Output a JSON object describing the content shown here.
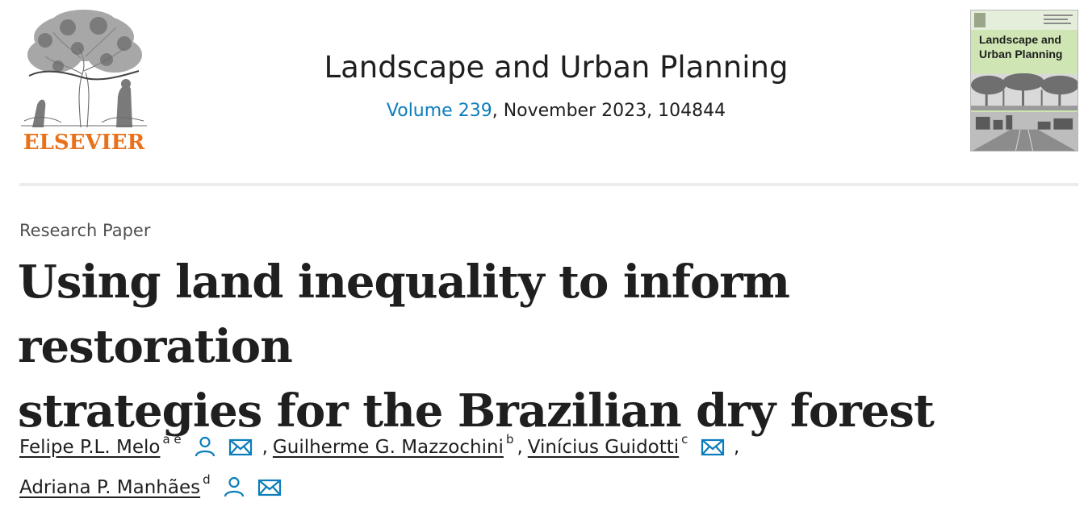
{
  "publisher": {
    "name": "ELSEVIER"
  },
  "journal": {
    "title": "Landscape and Urban Planning",
    "volume_link": "Volume 239",
    "issue_rest": ", November 2023, 104844",
    "cover_title_line1": "Landscape and",
    "cover_title_line2": "Urban Planning"
  },
  "article": {
    "type": "Research Paper",
    "title_line1": "Using land inequality to inform restoration",
    "title_line2": "strategies for the Brazilian dry forest"
  },
  "authors": [
    {
      "name": "Felipe P.L. Melo",
      "affiliations": "a e",
      "has_profile": true,
      "has_email": true
    },
    {
      "name": "Guilherme G. Mazzochini",
      "affiliations": "b",
      "has_profile": false,
      "has_email": false
    },
    {
      "name": "Vinícius Guidotti",
      "affiliations": "c",
      "has_profile": false,
      "has_email": true
    },
    {
      "name": "Adriana P. Manhães",
      "affiliations": "d",
      "has_profile": true,
      "has_email": true
    }
  ],
  "separators": {
    "comma": ","
  },
  "icons": {
    "profile": "person-icon",
    "email": "envelope-icon"
  },
  "colors": {
    "link": "#0c7dbb",
    "publisher": "#e9711c",
    "text": "#1f1f1f"
  }
}
